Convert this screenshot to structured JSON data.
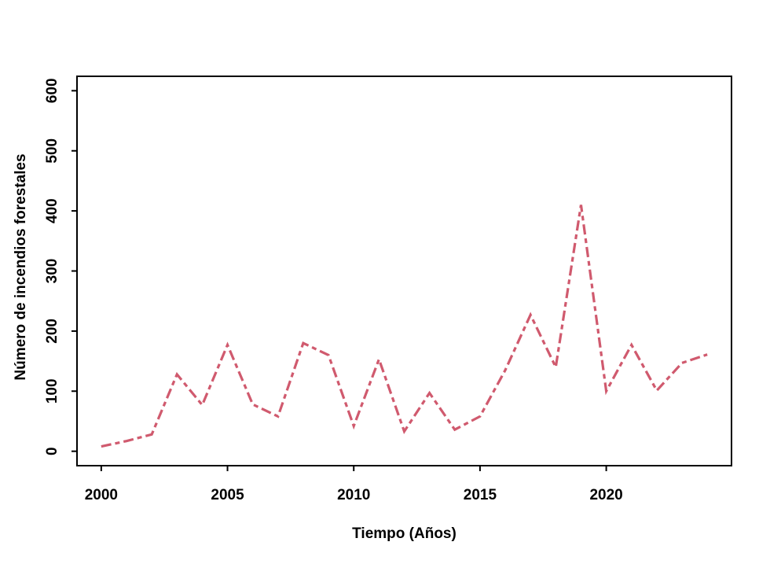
{
  "figure": {
    "background": "#ffffff",
    "axis_color": "#000000"
  },
  "chart_data": {
    "type": "line",
    "title": "",
    "xlabel": "Tiempo (Años)",
    "ylabel": "Número de incendios forestales",
    "x": [
      2000,
      2001,
      2002,
      2003,
      2004,
      2005,
      2006,
      2007,
      2008,
      2009,
      2010,
      2011,
      2012,
      2013,
      2014,
      2015,
      2016,
      2017,
      2018,
      2019,
      2020,
      2021,
      2022,
      2023,
      2024
    ],
    "series": [
      {
        "name": "incendios",
        "values": [
          8,
          17,
          28,
          128,
          77,
          177,
          78,
          58,
          180,
          160,
          42,
          153,
          33,
          97,
          36,
          58,
          135,
          227,
          140,
          410,
          100,
          177,
          101,
          147,
          161
        ]
      }
    ],
    "xlim": [
      2000,
      2024
    ],
    "ylim": [
      0,
      600
    ],
    "xticks": [
      2000,
      2005,
      2010,
      2015,
      2020
    ],
    "yticks": [
      0,
      100,
      200,
      300,
      400,
      500,
      600
    ],
    "grid": false,
    "legend": null,
    "line": {
      "color": "#d05a6e",
      "style": "dotdash",
      "dash_pattern": [
        13,
        5,
        6,
        5
      ],
      "width": 3.2
    }
  }
}
